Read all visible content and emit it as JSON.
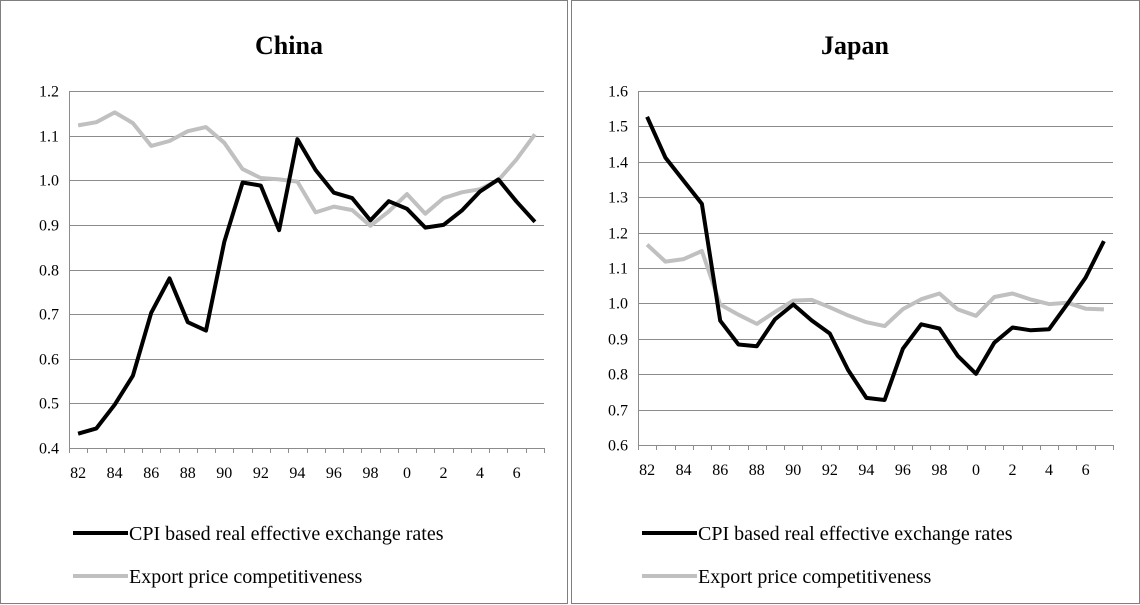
{
  "chart_data": [
    {
      "type": "line",
      "title": "China",
      "categories": [
        "82",
        "83",
        "84",
        "85",
        "86",
        "87",
        "88",
        "89",
        "90",
        "91",
        "92",
        "93",
        "94",
        "95",
        "96",
        "97",
        "98",
        "99",
        "0",
        "1",
        "2",
        "3",
        "4",
        "5",
        "6",
        "7"
      ],
      "x_tick_labels": [
        "82",
        "84",
        "86",
        "88",
        "90",
        "92",
        "94",
        "96",
        "98",
        "0",
        "2",
        "4",
        "6"
      ],
      "y_tick_labels": [
        "0.4",
        "0.5",
        "0.6",
        "0.7",
        "0.8",
        "0.9",
        "1.0",
        "1.1",
        "1.2"
      ],
      "ylim": [
        0.4,
        1.2
      ],
      "ystep": 0.1,
      "grid": true,
      "legend_position": "bottom",
      "series": [
        {
          "name": "CPI based real effective exchange rates",
          "color": "#000000",
          "values": [
            0.432,
            0.444,
            0.497,
            0.562,
            0.703,
            0.78,
            0.682,
            0.663,
            0.862,
            0.995,
            0.988,
            0.888,
            1.092,
            1.023,
            0.972,
            0.96,
            0.91,
            0.953,
            0.936,
            0.894,
            0.9,
            0.932,
            0.975,
            1.002,
            0.952,
            0.907
          ]
        },
        {
          "name": "Export price competitiveness",
          "color": "#c0c0c0",
          "values": [
            1.123,
            1.13,
            1.152,
            1.128,
            1.077,
            1.088,
            1.11,
            1.119,
            1.084,
            1.025,
            1.005,
            1.002,
            0.997,
            0.928,
            0.941,
            0.933,
            0.898,
            0.93,
            0.969,
            0.925,
            0.96,
            0.973,
            0.98,
            1.0,
            1.047,
            1.103
          ]
        }
      ]
    },
    {
      "type": "line",
      "title": "Japan",
      "categories": [
        "82",
        "83",
        "84",
        "85",
        "86",
        "87",
        "88",
        "89",
        "90",
        "91",
        "92",
        "93",
        "94",
        "95",
        "96",
        "97",
        "98",
        "99",
        "0",
        "1",
        "2",
        "3",
        "4",
        "5",
        "6",
        "7"
      ],
      "x_tick_labels": [
        "82",
        "84",
        "86",
        "88",
        "90",
        "92",
        "94",
        "96",
        "98",
        "0",
        "2",
        "4",
        "6"
      ],
      "y_tick_labels": [
        "0.6",
        "0.7",
        "0.8",
        "0.9",
        "1.0",
        "1.1",
        "1.2",
        "1.3",
        "1.4",
        "1.5",
        "1.6"
      ],
      "ylim": [
        0.6,
        1.6
      ],
      "ystep": 0.1,
      "grid": true,
      "legend_position": "bottom",
      "series": [
        {
          "name": "CPI based real effective exchange rates",
          "color": "#000000",
          "values": [
            1.527,
            1.412,
            1.346,
            1.281,
            0.951,
            0.884,
            0.879,
            0.955,
            0.997,
            0.952,
            0.915,
            0.812,
            0.733,
            0.727,
            0.872,
            0.941,
            0.929,
            0.852,
            0.801,
            0.889,
            0.932,
            0.924,
            0.927,
            0.998,
            1.073,
            1.176
          ]
        },
        {
          "name": "Export price competitiveness",
          "color": "#c0c0c0",
          "values": [
            1.166,
            1.118,
            1.125,
            1.148,
            0.997,
            0.968,
            0.942,
            0.976,
            1.008,
            1.01,
            0.989,
            0.966,
            0.947,
            0.936,
            0.984,
            1.012,
            1.028,
            0.983,
            0.965,
            1.018,
            1.028,
            1.011,
            0.998,
            1.002,
            0.985,
            0.983
          ]
        }
      ]
    }
  ]
}
